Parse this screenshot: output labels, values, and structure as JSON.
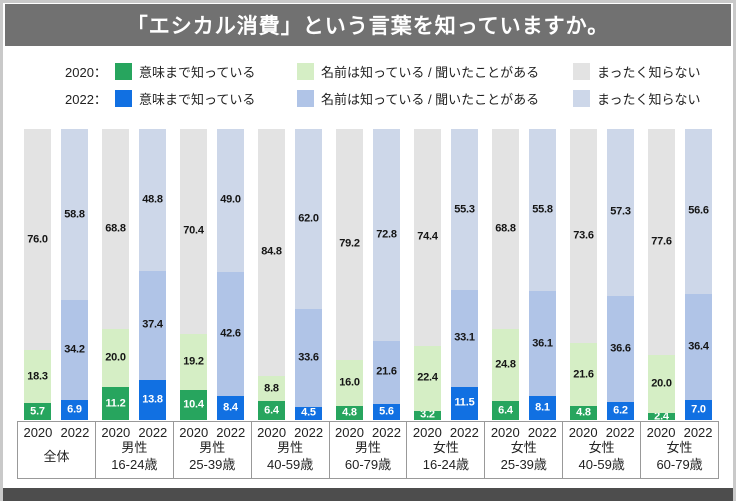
{
  "title": "「エシカル消費」という言葉を知っていますか。",
  "legend": {
    "rows": [
      {
        "year_label": "2020：",
        "items": [
          {
            "label": "意味まで知っている",
            "color": "#27a55e"
          },
          {
            "label": "名前は知っている / 聞いたことがある",
            "color": "#d5eec5"
          },
          {
            "label": "まったく知らない",
            "color": "#e3e3e3"
          }
        ]
      },
      {
        "year_label": "2022：",
        "items": [
          {
            "label": "意味まで知っている",
            "color": "#1170e2"
          },
          {
            "label": "名前は知っている / 聞いたことがある",
            "color": "#b0c4e7"
          },
          {
            "label": "まったく知らない",
            "color": "#cdd7e9"
          }
        ]
      }
    ]
  },
  "chart_data": {
    "type": "bar",
    "stacked": true,
    "unit": "%",
    "ylim": [
      0,
      100
    ],
    "grid": false,
    "legend_position": "top",
    "segment_labels": [
      "意味まで知っている",
      "名前は知っている/聞いたことがある",
      "まったく知らない"
    ],
    "segment_names": [
      "know-meaning",
      "know-name",
      "not-know"
    ],
    "series_colors": {
      "2020": [
        "#27a55e",
        "#d5eec5",
        "#e3e3e3"
      ],
      "2022": [
        "#1170e2",
        "#b0c4e7",
        "#cdd7e9"
      ]
    },
    "label_colors": [
      "#ffffff",
      "#151515",
      "#151515"
    ],
    "groups": [
      {
        "name": "全体",
        "age": "",
        "bars": [
          {
            "year": "2020",
            "values": [
              5.7,
              18.3,
              76.0
            ]
          },
          {
            "year": "2022",
            "values": [
              6.9,
              34.2,
              58.8
            ]
          }
        ]
      },
      {
        "name": "男性",
        "age": "16-24歳",
        "bars": [
          {
            "year": "2020",
            "values": [
              11.2,
              20.0,
              68.8
            ]
          },
          {
            "year": "2022",
            "values": [
              13.8,
              37.4,
              48.8
            ]
          }
        ]
      },
      {
        "name": "男性",
        "age": "25-39歳",
        "bars": [
          {
            "year": "2020",
            "values": [
              10.4,
              19.2,
              70.4
            ]
          },
          {
            "year": "2022",
            "values": [
              8.4,
              42.6,
              49.0
            ]
          }
        ]
      },
      {
        "name": "男性",
        "age": "40-59歳",
        "bars": [
          {
            "year": "2020",
            "values": [
              6.4,
              8.8,
              84.8
            ]
          },
          {
            "year": "2022",
            "values": [
              4.5,
              33.6,
              62.0
            ]
          }
        ]
      },
      {
        "name": "男性",
        "age": "60-79歳",
        "bars": [
          {
            "year": "2020",
            "values": [
              4.8,
              16.0,
              79.2
            ]
          },
          {
            "year": "2022",
            "values": [
              5.6,
              21.6,
              72.8
            ]
          }
        ]
      },
      {
        "name": "女性",
        "age": "16-24歳",
        "bars": [
          {
            "year": "2020",
            "values": [
              3.2,
              22.4,
              74.4
            ]
          },
          {
            "year": "2022",
            "values": [
              11.5,
              33.1,
              55.3
            ]
          }
        ]
      },
      {
        "name": "女性",
        "age": "25-39歳",
        "bars": [
          {
            "year": "2020",
            "values": [
              6.4,
              24.8,
              68.8
            ]
          },
          {
            "year": "2022",
            "values": [
              8.1,
              36.1,
              55.8
            ]
          }
        ]
      },
      {
        "name": "女性",
        "age": "40-59歳",
        "bars": [
          {
            "year": "2020",
            "values": [
              4.8,
              21.6,
              73.6
            ]
          },
          {
            "year": "2022",
            "values": [
              6.2,
              36.6,
              57.3
            ]
          }
        ]
      },
      {
        "name": "女性",
        "age": "60-79歳",
        "bars": [
          {
            "year": "2020",
            "values": [
              2.4,
              20.0,
              77.6
            ]
          },
          {
            "year": "2022",
            "values": [
              7.0,
              36.4,
              56.6
            ]
          }
        ]
      }
    ]
  }
}
